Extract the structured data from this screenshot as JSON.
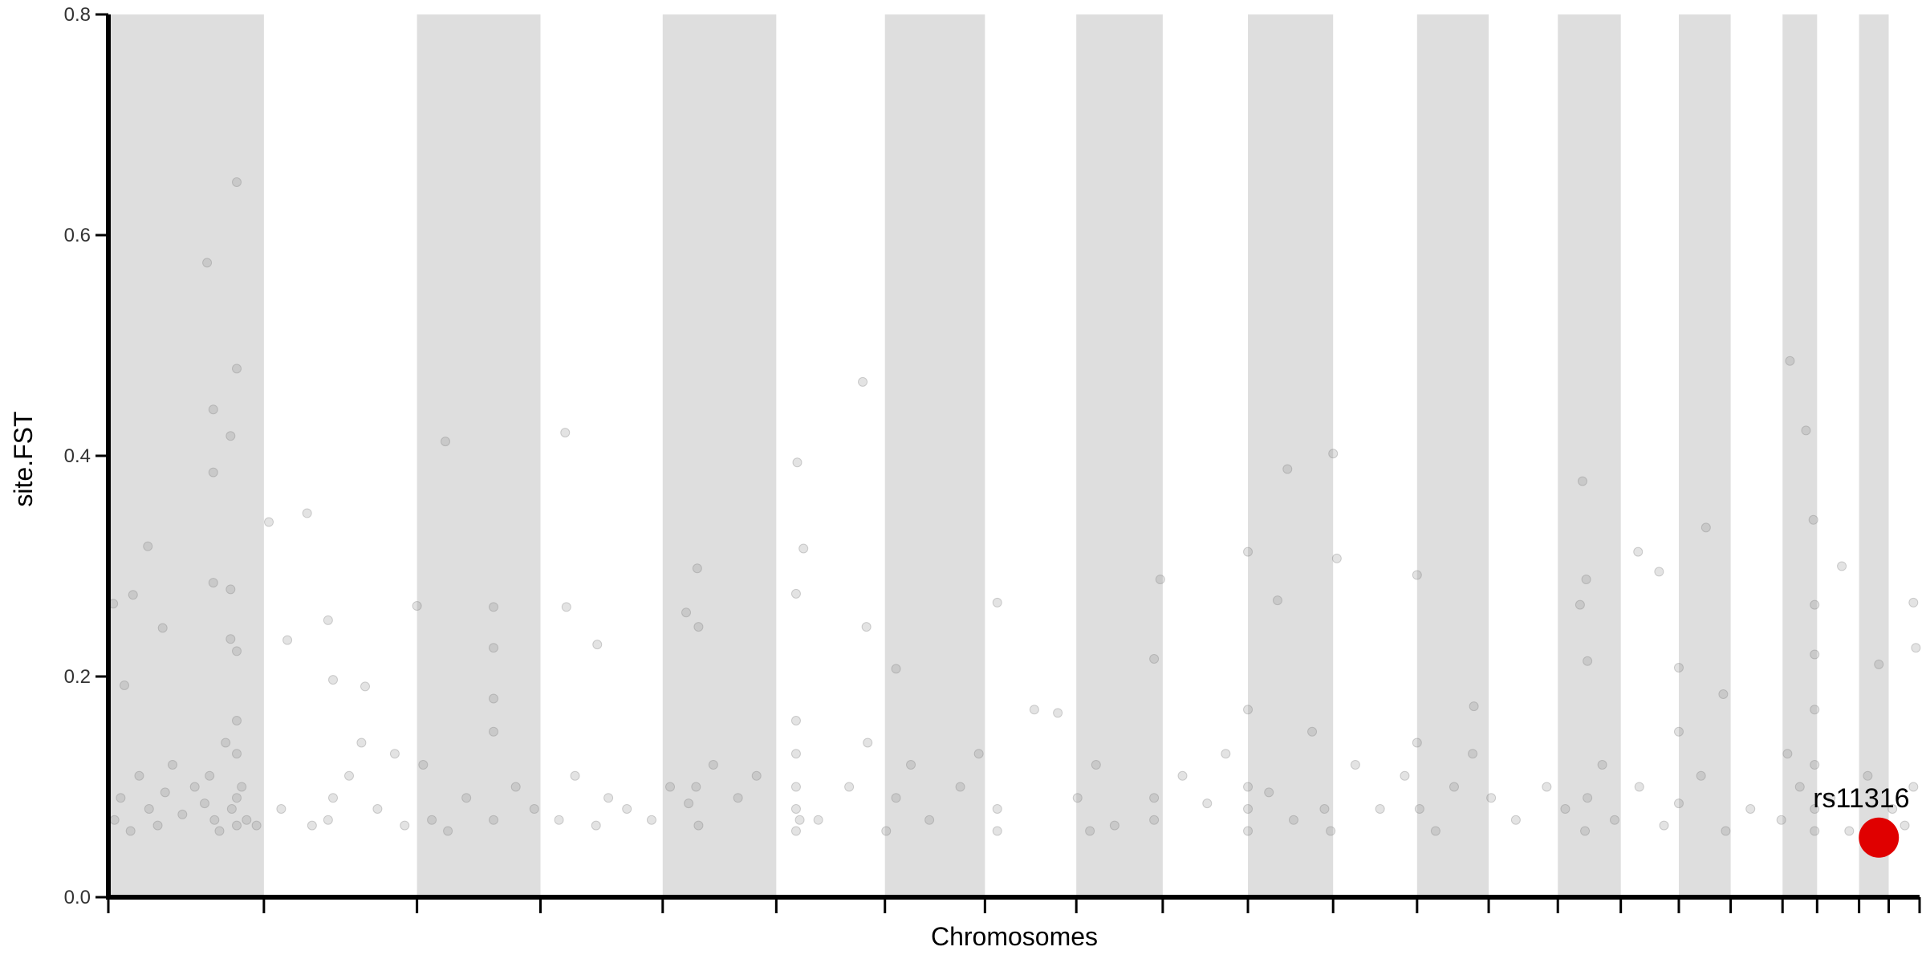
{
  "chart_data": {
    "type": "scatter",
    "x_label": "Chromosomes",
    "y_label": "site.FST",
    "xlim": [
      0,
      1467
    ],
    "xticks": [
      0,
      126,
      250,
      350,
      449,
      541,
      629,
      710,
      784,
      854,
      923,
      992,
      1060,
      1118,
      1174,
      1225,
      1272,
      1314,
      1356,
      1384,
      1418,
      1442,
      1467
    ],
    "shade_alternate": true,
    "shade_color": "#dedede",
    "ylim": [
      0,
      0.8
    ],
    "yticks": [
      {
        "value": 0,
        "label": "0.0"
      },
      0.2,
      0.4,
      0.6,
      0.8
    ],
    "points": {
      "color": "#808080",
      "x": [
        104,
        80,
        104,
        85,
        99,
        85,
        85,
        99,
        32,
        20,
        4,
        130,
        161,
        273,
        370,
        611,
        558,
        992,
        955,
        1362,
        1375,
        1381,
        1194,
        1294,
        1239,
        923,
        1404,
        852,
        477,
        563,
        178,
        312,
        371,
        250,
        720,
        1462,
        1060,
        995,
        1382,
        1434,
        1197,
        1198,
        947,
        638,
        468,
        478,
        145,
        44,
        99,
        104,
        847,
        557,
        614,
        396,
        13,
        182,
        312,
        208,
        1256,
        1192,
        1272,
        1308,
        769,
        1106,
        1464,
        5,
        10,
        18,
        25,
        33,
        40,
        46,
        52,
        60,
        70,
        78,
        82,
        86,
        90,
        95,
        100,
        104,
        104,
        108,
        104,
        104,
        112,
        120,
        140,
        165,
        178,
        182,
        195,
        205,
        218,
        232,
        240,
        255,
        262,
        275,
        290,
        312,
        312,
        312,
        330,
        345,
        365,
        378,
        395,
        405,
        420,
        440,
        455,
        470,
        476,
        478,
        490,
        510,
        525,
        557,
        557,
        557,
        557,
        557,
        560,
        575,
        600,
        615,
        630,
        638,
        650,
        665,
        690,
        705,
        720,
        720,
        750,
        785,
        795,
        800,
        815,
        847,
        847,
        870,
        890,
        905,
        923,
        923,
        923,
        923,
        940,
        960,
        975,
        985,
        990,
        1010,
        1030,
        1050,
        1060,
        1062,
        1075,
        1090,
        1105,
        1120,
        1140,
        1165,
        1180,
        1196,
        1198,
        1210,
        1220,
        1240,
        1260,
        1272,
        1272,
        1290,
        1310,
        1330,
        1355,
        1360,
        1370,
        1382,
        1382,
        1382,
        1382,
        1382,
        1395,
        1410,
        1425,
        1445,
        1455,
        1462
      ],
      "y": [
        0.648,
        0.575,
        0.479,
        0.442,
        0.418,
        0.385,
        0.285,
        0.279,
        0.318,
        0.274,
        0.266,
        0.34,
        0.348,
        0.413,
        0.421,
        0.467,
        0.394,
        0.402,
        0.388,
        0.486,
        0.423,
        0.342,
        0.377,
        0.335,
        0.313,
        0.313,
        0.3,
        0.288,
        0.298,
        0.316,
        0.251,
        0.263,
        0.263,
        0.264,
        0.267,
        0.267,
        0.292,
        0.307,
        0.265,
        0.211,
        0.288,
        0.214,
        0.269,
        0.207,
        0.258,
        0.245,
        0.233,
        0.244,
        0.234,
        0.223,
        0.216,
        0.275,
        0.245,
        0.229,
        0.192,
        0.197,
        0.226,
        0.191,
        0.295,
        0.265,
        0.208,
        0.184,
        0.167,
        0.173,
        0.226,
        0.07,
        0.09,
        0.06,
        0.11,
        0.08,
        0.065,
        0.095,
        0.12,
        0.075,
        0.1,
        0.085,
        0.11,
        0.07,
        0.06,
        0.14,
        0.08,
        0.065,
        0.09,
        0.1,
        0.16,
        0.13,
        0.07,
        0.065,
        0.08,
        0.065,
        0.07,
        0.09,
        0.11,
        0.14,
        0.08,
        0.13,
        0.065,
        0.12,
        0.07,
        0.06,
        0.09,
        0.07,
        0.15,
        0.18,
        0.1,
        0.08,
        0.07,
        0.11,
        0.065,
        0.09,
        0.08,
        0.07,
        0.1,
        0.085,
        0.1,
        0.065,
        0.12,
        0.09,
        0.11,
        0.06,
        0.08,
        0.1,
        0.13,
        0.16,
        0.07,
        0.07,
        0.1,
        0.14,
        0.06,
        0.09,
        0.12,
        0.07,
        0.1,
        0.13,
        0.08,
        0.06,
        0.17,
        0.09,
        0.06,
        0.12,
        0.065,
        0.07,
        0.09,
        0.11,
        0.085,
        0.13,
        0.06,
        0.08,
        0.1,
        0.17,
        0.095,
        0.07,
        0.15,
        0.08,
        0.06,
        0.12,
        0.08,
        0.11,
        0.14,
        0.08,
        0.06,
        0.1,
        0.13,
        0.09,
        0.07,
        0.1,
        0.08,
        0.06,
        0.09,
        0.12,
        0.07,
        0.1,
        0.065,
        0.15,
        0.085,
        0.11,
        0.06,
        0.08,
        0.07,
        0.13,
        0.1,
        0.06,
        0.08,
        0.12,
        0.17,
        0.22,
        0.09,
        0.06,
        0.11,
        0.08,
        0.065,
        0.1
      ]
    },
    "highlight": {
      "x": 1434,
      "y": 0.054,
      "label": "rs11316",
      "color": "#e00000"
    }
  }
}
